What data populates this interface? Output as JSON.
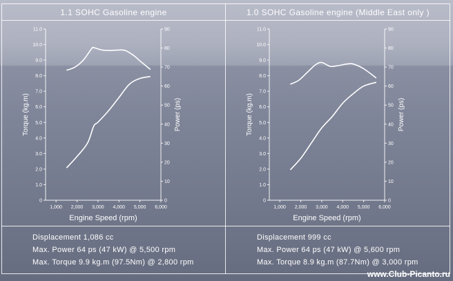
{
  "panels": [
    {
      "title": "1.1 SOHC Gasoline engine",
      "specs": {
        "displacement": "Displacement 1,086 cc",
        "power": "Max. Power 64 ps (47 kW) @ 5,500 rpm",
        "torque": "Max. Torque 9.9 kg.m (97.5Nm) @ 2,800 rpm"
      }
    },
    {
      "title": "1.0 SOHC Gasoline engine (Middle East only )",
      "specs": {
        "displacement": "Displacement 999 cc",
        "power": "Max. Power 64 ps (47 kW) @ 5,600 rpm",
        "torque": "Max. Torque 8.9 kg.m (87.7Nm) @ 3,000 rpm"
      }
    }
  ],
  "chart_data": [
    {
      "type": "line",
      "xlabel": "Engine Speed (rpm)",
      "ylabel": "Torque (kg.m)",
      "y2label": "Power (ps)",
      "xlim": [
        500,
        6000
      ],
      "ylim": [
        0,
        11
      ],
      "y2lim": [
        0,
        90
      ],
      "xticks": [
        "1,000",
        "2,000",
        "3,000",
        "4,000",
        "5,000",
        "6,000"
      ],
      "yticks": [
        "0",
        "1.0",
        "2.0",
        "3.0",
        "4.0",
        "5.0",
        "6.0",
        "7.0",
        "8.0",
        "9.0",
        "10.0",
        "11.0"
      ],
      "y2ticks": [
        "0",
        "10",
        "20",
        "30",
        "40",
        "50",
        "60",
        "70",
        "80",
        "90"
      ],
      "grid": false,
      "series": [
        {
          "axis": "left",
          "x": [
            1500,
            1900,
            2300,
            2700,
            2800,
            3200,
            3600,
            4000,
            4300,
            4700,
            5000,
            5500
          ],
          "values": [
            8.35,
            8.55,
            9.0,
            9.75,
            9.8,
            9.65,
            9.62,
            9.65,
            9.62,
            9.3,
            8.95,
            8.4
          ]
        },
        {
          "axis": "right",
          "x": [
            1500,
            2000,
            2500,
            2800,
            3000,
            3500,
            4000,
            4500,
            5000,
            5500
          ],
          "values": [
            17,
            23,
            30,
            39,
            41,
            47,
            54,
            61,
            64,
            65
          ]
        }
      ]
    },
    {
      "type": "line",
      "xlabel": "Engine Speed (rpm)",
      "ylabel": "Torque (kg.m)",
      "y2label": "Power (ps)",
      "xlim": [
        500,
        6000
      ],
      "ylim": [
        0,
        11
      ],
      "y2lim": [
        0,
        90
      ],
      "xticks": [
        "1,000",
        "2,000",
        "3,000",
        "4,000",
        "5,000",
        "6,000"
      ],
      "yticks": [
        "0",
        "1.0",
        "2.0",
        "3.0",
        "4.0",
        "5.0",
        "6.0",
        "7.0",
        "8.0",
        "9.0",
        "10.0",
        "11.0"
      ],
      "y2ticks": [
        "0",
        "10",
        "20",
        "30",
        "40",
        "50",
        "60",
        "70",
        "80",
        "90"
      ],
      "grid": false,
      "series": [
        {
          "axis": "left",
          "x": [
            1500,
            1900,
            2300,
            2700,
            3000,
            3400,
            3800,
            4200,
            4500,
            5000,
            5600
          ],
          "values": [
            7.45,
            7.7,
            8.2,
            8.7,
            8.85,
            8.6,
            8.65,
            8.75,
            8.75,
            8.45,
            7.85
          ]
        },
        {
          "axis": "right",
          "x": [
            1500,
            2000,
            2500,
            3000,
            3500,
            4000,
            4500,
            5000,
            5600
          ],
          "values": [
            16,
            22,
            30,
            38,
            44,
            51,
            56,
            60,
            62
          ]
        }
      ]
    }
  ],
  "watermark": "www.Club-Picanto.ru"
}
